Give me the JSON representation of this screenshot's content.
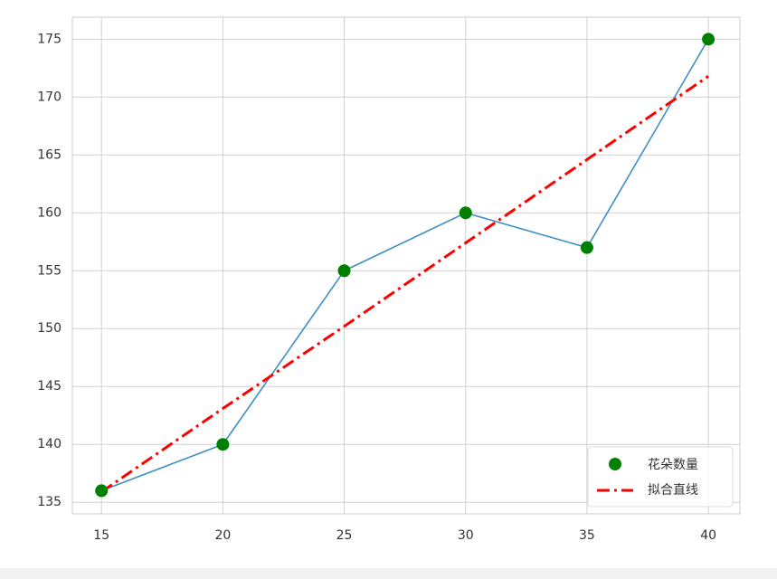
{
  "chart_data": {
    "type": "line",
    "x": [
      15,
      20,
      25,
      30,
      35,
      40
    ],
    "series": [
      {
        "name": "花朵数量",
        "color": "#3f8fc5",
        "marker_color": "#008000",
        "values": [
          136,
          140,
          155,
          160,
          157,
          175
        ]
      },
      {
        "name": "拟合直线",
        "color": "#ff0000",
        "values": [
          135.9,
          143.1,
          150.2,
          157.4,
          164.6,
          171.8
        ]
      }
    ],
    "xlim": [
      13.8,
      41.3
    ],
    "ylim": [
      134,
      176.9
    ],
    "xticks": [
      15,
      20,
      25,
      30,
      35,
      40
    ],
    "yticks": [
      135,
      140,
      145,
      150,
      155,
      160,
      165,
      170,
      175
    ],
    "grid": true,
    "legend": "lower right"
  }
}
